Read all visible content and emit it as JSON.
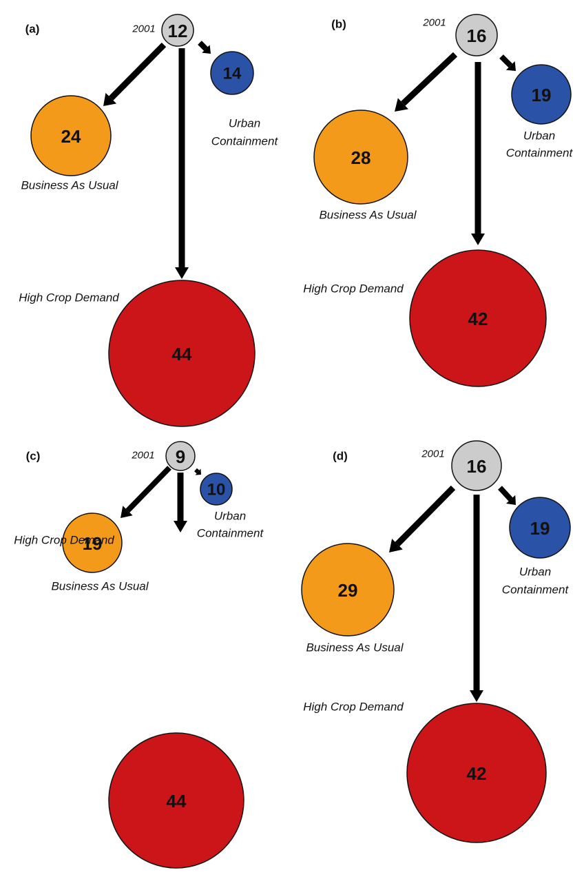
{
  "colors": {
    "baseline": "#cccccc",
    "business_as_usual": "#f39a1b",
    "urban_containment": "#2a53a8",
    "high_crop_demand": "#cc1518",
    "arrow": "#000000",
    "outline": "#111111"
  },
  "panels": [
    {
      "label": "(a)",
      "year_label": "2001",
      "baseline": "12",
      "urban_containment": {
        "value": "14",
        "label_line1": "Urban",
        "label_line2": "Containment"
      },
      "business_as_usual": {
        "value": "24",
        "label": "Business As Usual"
      },
      "high_crop_demand": {
        "value": "44",
        "label": "High Crop Demand"
      }
    },
    {
      "label": "(b)",
      "year_label": "2001",
      "baseline": "16",
      "urban_containment": {
        "value": "19",
        "label_line1": "Urban",
        "label_line2": "Containment"
      },
      "business_as_usual": {
        "value": "28",
        "label": "Business As Usual"
      },
      "high_crop_demand": {
        "value": "42",
        "label": "High Crop Demand"
      }
    },
    {
      "label": "(c)",
      "year_label": "2001",
      "baseline": "9",
      "urban_containment": {
        "value": "10",
        "label_line1": "Urban",
        "label_line2": "Containment"
      },
      "business_as_usual": {
        "value": "19",
        "label": "Business As Usual"
      },
      "high_crop_demand": {
        "value": "44",
        "label": "High Crop Demand"
      }
    },
    {
      "label": "(d)",
      "year_label": "2001",
      "baseline": "16",
      "urban_containment": {
        "value": "19",
        "label_line1": "Urban",
        "label_line2": "Containment"
      },
      "business_as_usual": {
        "value": "29",
        "label": "Business As Usual"
      },
      "high_crop_demand": {
        "value": "42",
        "label": "High Crop Demand"
      }
    }
  ]
}
